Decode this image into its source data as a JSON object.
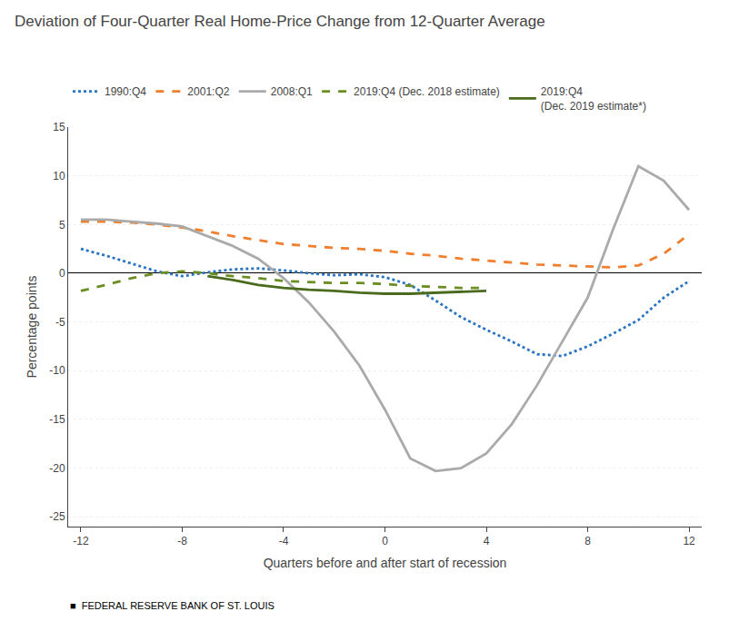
{
  "chart_data": {
    "type": "line",
    "title": "Deviation of Four-Quarter Real Home-Price Change from 12-Quarter Average",
    "x_label": "Quarters before and after start of recession",
    "y_label": "Percentage points",
    "x": [
      -12,
      -11,
      -10,
      -9,
      -8,
      -7,
      -6,
      -5,
      -4,
      -3,
      -2,
      -1,
      0,
      1,
      2,
      3,
      4,
      5,
      6,
      7,
      8,
      9,
      10,
      11,
      12
    ],
    "series": [
      {
        "name": "1990:Q4",
        "color": "#2874C5",
        "line_style": "dotted",
        "values": [
          2.5,
          1.8,
          1.0,
          0.2,
          -0.3,
          0.1,
          0.4,
          0.5,
          0.3,
          0.0,
          -0.2,
          -0.1,
          -0.4,
          -1.2,
          -2.8,
          -4.5,
          -5.8,
          -7.0,
          -8.3,
          -8.5,
          -7.5,
          -6.2,
          -4.8,
          -2.5,
          -0.8
        ]
      },
      {
        "name": "2001:Q2",
        "color": "#F07F2D",
        "line_style": "dashed",
        "values": [
          5.3,
          5.3,
          5.2,
          5.0,
          4.7,
          4.3,
          3.8,
          3.4,
          3.0,
          2.8,
          2.6,
          2.5,
          2.3,
          2.0,
          1.8,
          1.5,
          1.3,
          1.1,
          0.9,
          0.8,
          0.7,
          0.6,
          0.8,
          2.0,
          4.0
        ]
      },
      {
        "name": "2008:Q1",
        "color": "#AAAAAA",
        "line_style": "solid",
        "values": [
          5.5,
          5.5,
          5.3,
          5.1,
          4.8,
          3.8,
          2.8,
          1.5,
          -0.5,
          -3.0,
          -6.0,
          -9.5,
          -14.0,
          -19.0,
          -20.3,
          -20.0,
          -18.5,
          -15.5,
          -11.5,
          -7.0,
          -2.5,
          4.5,
          11.0,
          9.5,
          6.5
        ]
      },
      {
        "name": "2019:Q4 (Dec. 2018 estimate)",
        "color": "#6B8E23",
        "line_style": "dashed",
        "values": [
          -1.8,
          -1.2,
          -0.5,
          0.0,
          0.2,
          0.0,
          -0.3,
          -0.5,
          -0.8,
          -0.9,
          -1.0,
          -1.0,
          -1.1,
          -1.3,
          -1.4,
          -1.5,
          -1.5,
          null,
          null,
          null,
          null,
          null,
          null,
          null,
          null
        ]
      },
      {
        "name": "2019:Q4\n(Dec. 2019 estimate*)",
        "color": "#4A6B1E",
        "line_style": "solid",
        "values": [
          null,
          null,
          null,
          null,
          null,
          -0.3,
          -0.7,
          -1.2,
          -1.5,
          -1.7,
          -1.8,
          -2.0,
          -2.1,
          -2.1,
          -2.0,
          -1.9,
          -1.8,
          null,
          null,
          null,
          null,
          null,
          null,
          null,
          null
        ]
      }
    ],
    "xlim": [
      -12.5,
      12.5
    ],
    "ylim": [
      -26,
      15
    ],
    "xticks": [
      -12,
      -8,
      -4,
      0,
      4,
      8,
      12
    ],
    "yticks": [
      15,
      10,
      5,
      0,
      -5,
      -10,
      -15,
      -20,
      -25
    ],
    "grid": "y",
    "legend": "upper left",
    "annotations": [
      "■  FEDERAL RESERVE BANK OF ST. LOUIS"
    ]
  }
}
